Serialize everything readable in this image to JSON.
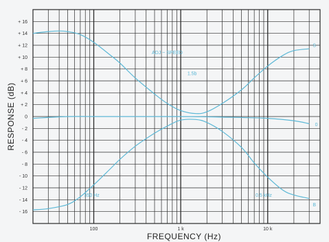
{
  "chart_data": {
    "type": "line",
    "xlabel": "FREQUENCY (Hz)",
    "ylabel": "RESPONSE (dB)",
    "x_scale": "log",
    "xlim": [
      20,
      40000
    ],
    "ylim": [
      -18,
      18
    ],
    "grid": true,
    "x_tick_labels": [
      {
        "x": 100,
        "label": "100"
      },
      {
        "x": 1000,
        "label": "1 k"
      },
      {
        "x": 10000,
        "label": "10 k"
      }
    ],
    "y_ticks": [
      -16,
      -14,
      -12,
      -10,
      -8,
      -6,
      -4,
      -2,
      0,
      2,
      4,
      6,
      8,
      10,
      12,
      14,
      16
    ],
    "y_tick_labels": [
      "- 16",
      "- 14",
      "- 12",
      "- 10",
      "- 8",
      "- 6",
      "- 4",
      "- 2",
      "0",
      "+ 2",
      "+ 4",
      "+ 6",
      "+ 8",
      "+ 10",
      "+ 12",
      "+ 14",
      "+ 16"
    ],
    "series": [
      {
        "name": "S",
        "x": [
          20,
          30,
          40,
          50,
          70,
          100,
          150,
          200,
          300,
          500,
          700,
          1000,
          1500,
          2000,
          3000,
          5000,
          7000,
          10000,
          15000,
          20000,
          30000
        ],
        "y": [
          14,
          14.3,
          14.4,
          14.3,
          13.8,
          12.5,
          10.5,
          9,
          6.5,
          3.8,
          2.2,
          1,
          0.5,
          0.8,
          2.2,
          4.5,
          6.5,
          8.5,
          10.3,
          11.1,
          11.4
        ]
      },
      {
        "name": "0",
        "x": [
          20,
          50,
          100,
          300,
          1000,
          3000,
          10000,
          20000,
          30000
        ],
        "y": [
          -0.3,
          0,
          0,
          0,
          0,
          -0.1,
          -0.3,
          -0.7,
          -1.2
        ]
      },
      {
        "name": "B",
        "x": [
          20,
          30,
          50,
          70,
          100,
          150,
          200,
          300,
          500,
          700,
          1000,
          1500,
          2000,
          3000,
          5000,
          7000,
          10000,
          15000,
          20000,
          30000
        ],
        "y": [
          -15.7,
          -15.5,
          -14.8,
          -13.5,
          -11.5,
          -9,
          -7.2,
          -5,
          -2.8,
          -1.6,
          -0.6,
          -0.5,
          -1,
          -2.5,
          -5.2,
          -7.8,
          -10.2,
          -12.4,
          -13.2,
          -13.8
        ]
      }
    ],
    "annotations": [
      {
        "text": "ADJ ~ SPEED",
        "x": 700,
        "y": 10.5
      },
      {
        "text": "1.5b",
        "x": 1350,
        "y": 7
      },
      {
        "text": "350 Hz",
        "x": 95,
        "y": -13.5
      },
      {
        "text": "0.5 kHz",
        "x": 9000,
        "y": -13.5
      }
    ],
    "end_labels": [
      {
        "text": "S",
        "x": 33000,
        "y": 12
      },
      {
        "text": "0",
        "x": 35000,
        "y": -1.3
      },
      {
        "text": "B",
        "x": 33000,
        "y": -14.8
      }
    ],
    "colors": {
      "grid": "#2a2a2a",
      "curve": "#5cb8d6",
      "background": "#f4f5f6"
    }
  }
}
